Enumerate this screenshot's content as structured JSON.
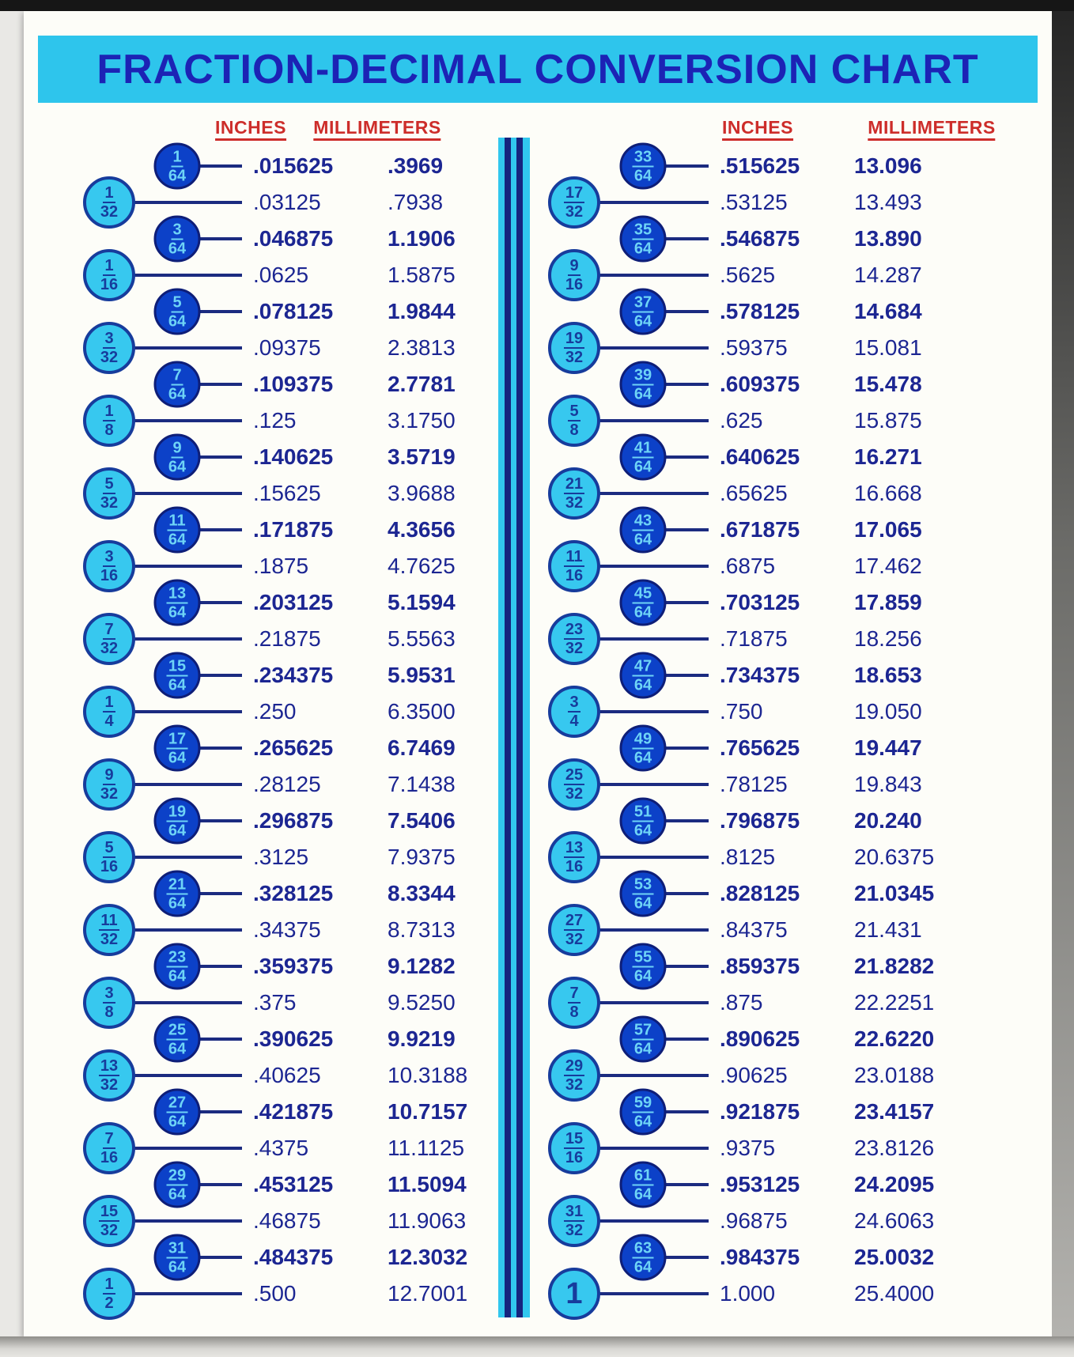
{
  "title": "FRACTION-DECIMAL CONVERSION CHART",
  "headers": [
    "INCHES",
    "MILLIMETERS",
    "INCHES",
    "MILLIMETERS"
  ],
  "colors": {
    "title_bar": "#2ec5ec",
    "title_text": "#1c23b5",
    "header_red": "#cd2d2a",
    "value_navy": "#1c2692",
    "line_navy": "#1b2b80",
    "dark_circle": "#0c41c8",
    "dark_circle_border": "#0e1e78",
    "dark_circle_text": "#6ed4f6",
    "light_circle": "#37c8ef",
    "light_circle_border": "#173c9c",
    "divider_cyan": "#31c7ee",
    "divider_navy": "#16247e"
  },
  "columns": [
    {
      "side": "left",
      "rows": [
        {
          "num": "1",
          "den": "64",
          "inches": ".015625",
          "mm": ".3969",
          "style": "dark"
        },
        {
          "num": "1",
          "den": "32",
          "inches": ".03125",
          "mm": ".7938",
          "style": "light"
        },
        {
          "num": "3",
          "den": "64",
          "inches": ".046875",
          "mm": "1.1906",
          "style": "dark"
        },
        {
          "num": "1",
          "den": "16",
          "inches": ".0625",
          "mm": "1.5875",
          "style": "light"
        },
        {
          "num": "5",
          "den": "64",
          "inches": ".078125",
          "mm": "1.9844",
          "style": "dark"
        },
        {
          "num": "3",
          "den": "32",
          "inches": ".09375",
          "mm": "2.3813",
          "style": "light"
        },
        {
          "num": "7",
          "den": "64",
          "inches": ".109375",
          "mm": "2.7781",
          "style": "dark"
        },
        {
          "num": "1",
          "den": "8",
          "inches": ".125",
          "mm": "3.1750",
          "style": "light"
        },
        {
          "num": "9",
          "den": "64",
          "inches": ".140625",
          "mm": "3.5719",
          "style": "dark"
        },
        {
          "num": "5",
          "den": "32",
          "inches": ".15625",
          "mm": "3.9688",
          "style": "light"
        },
        {
          "num": "11",
          "den": "64",
          "inches": ".171875",
          "mm": "4.3656",
          "style": "dark"
        },
        {
          "num": "3",
          "den": "16",
          "inches": ".1875",
          "mm": "4.7625",
          "style": "light"
        },
        {
          "num": "13",
          "den": "64",
          "inches": ".203125",
          "mm": "5.1594",
          "style": "dark"
        },
        {
          "num": "7",
          "den": "32",
          "inches": ".21875",
          "mm": "5.5563",
          "style": "light"
        },
        {
          "num": "15",
          "den": "64",
          "inches": ".234375",
          "mm": "5.9531",
          "style": "dark"
        },
        {
          "num": "1",
          "den": "4",
          "inches": ".250",
          "mm": "6.3500",
          "style": "light"
        },
        {
          "num": "17",
          "den": "64",
          "inches": ".265625",
          "mm": "6.7469",
          "style": "dark"
        },
        {
          "num": "9",
          "den": "32",
          "inches": ".28125",
          "mm": "7.1438",
          "style": "light"
        },
        {
          "num": "19",
          "den": "64",
          "inches": ".296875",
          "mm": "7.5406",
          "style": "dark"
        },
        {
          "num": "5",
          "den": "16",
          "inches": ".3125",
          "mm": "7.9375",
          "style": "light"
        },
        {
          "num": "21",
          "den": "64",
          "inches": ".328125",
          "mm": "8.3344",
          "style": "dark"
        },
        {
          "num": "11",
          "den": "32",
          "inches": ".34375",
          "mm": "8.7313",
          "style": "light"
        },
        {
          "num": "23",
          "den": "64",
          "inches": ".359375",
          "mm": "9.1282",
          "style": "dark"
        },
        {
          "num": "3",
          "den": "8",
          "inches": ".375",
          "mm": "9.5250",
          "style": "light"
        },
        {
          "num": "25",
          "den": "64",
          "inches": ".390625",
          "mm": "9.9219",
          "style": "dark"
        },
        {
          "num": "13",
          "den": "32",
          "inches": ".40625",
          "mm": "10.3188",
          "style": "light"
        },
        {
          "num": "27",
          "den": "64",
          "inches": ".421875",
          "mm": "10.7157",
          "style": "dark"
        },
        {
          "num": "7",
          "den": "16",
          "inches": ".4375",
          "mm": "11.1125",
          "style": "light"
        },
        {
          "num": "29",
          "den": "64",
          "inches": ".453125",
          "mm": "11.5094",
          "style": "dark"
        },
        {
          "num": "15",
          "den": "32",
          "inches": ".46875",
          "mm": "11.9063",
          "style": "light"
        },
        {
          "num": "31",
          "den": "64",
          "inches": ".484375",
          "mm": "12.3032",
          "style": "dark"
        },
        {
          "num": "1",
          "den": "2",
          "inches": ".500",
          "mm": "12.7001",
          "style": "light"
        }
      ]
    },
    {
      "side": "right",
      "rows": [
        {
          "num": "33",
          "den": "64",
          "inches": ".515625",
          "mm": "13.096",
          "style": "dark"
        },
        {
          "num": "17",
          "den": "32",
          "inches": ".53125",
          "mm": "13.493",
          "style": "light"
        },
        {
          "num": "35",
          "den": "64",
          "inches": ".546875",
          "mm": "13.890",
          "style": "dark"
        },
        {
          "num": "9",
          "den": "16",
          "inches": ".5625",
          "mm": "14.287",
          "style": "light"
        },
        {
          "num": "37",
          "den": "64",
          "inches": ".578125",
          "mm": "14.684",
          "style": "dark"
        },
        {
          "num": "19",
          "den": "32",
          "inches": ".59375",
          "mm": "15.081",
          "style": "light"
        },
        {
          "num": "39",
          "den": "64",
          "inches": ".609375",
          "mm": "15.478",
          "style": "dark"
        },
        {
          "num": "5",
          "den": "8",
          "inches": ".625",
          "mm": "15.875",
          "style": "light"
        },
        {
          "num": "41",
          "den": "64",
          "inches": ".640625",
          "mm": "16.271",
          "style": "dark"
        },
        {
          "num": "21",
          "den": "32",
          "inches": ".65625",
          "mm": "16.668",
          "style": "light"
        },
        {
          "num": "43",
          "den": "64",
          "inches": ".671875",
          "mm": "17.065",
          "style": "dark"
        },
        {
          "num": "11",
          "den": "16",
          "inches": ".6875",
          "mm": "17.462",
          "style": "light"
        },
        {
          "num": "45",
          "den": "64",
          "inches": ".703125",
          "mm": "17.859",
          "style": "dark"
        },
        {
          "num": "23",
          "den": "32",
          "inches": ".71875",
          "mm": "18.256",
          "style": "light"
        },
        {
          "num": "47",
          "den": "64",
          "inches": ".734375",
          "mm": "18.653",
          "style": "dark"
        },
        {
          "num": "3",
          "den": "4",
          "inches": ".750",
          "mm": "19.050",
          "style": "light"
        },
        {
          "num": "49",
          "den": "64",
          "inches": ".765625",
          "mm": "19.447",
          "style": "dark"
        },
        {
          "num": "25",
          "den": "32",
          "inches": ".78125",
          "mm": "19.843",
          "style": "light"
        },
        {
          "num": "51",
          "den": "64",
          "inches": ".796875",
          "mm": "20.240",
          "style": "dark"
        },
        {
          "num": "13",
          "den": "16",
          "inches": ".8125",
          "mm": "20.6375",
          "style": "light"
        },
        {
          "num": "53",
          "den": "64",
          "inches": ".828125",
          "mm": "21.0345",
          "style": "dark"
        },
        {
          "num": "27",
          "den": "32",
          "inches": ".84375",
          "mm": "21.431",
          "style": "light"
        },
        {
          "num": "55",
          "den": "64",
          "inches": ".859375",
          "mm": "21.8282",
          "style": "dark"
        },
        {
          "num": "7",
          "den": "8",
          "inches": ".875",
          "mm": "22.2251",
          "style": "light"
        },
        {
          "num": "57",
          "den": "64",
          "inches": ".890625",
          "mm": "22.6220",
          "style": "dark"
        },
        {
          "num": "29",
          "den": "32",
          "inches": ".90625",
          "mm": "23.0188",
          "style": "light"
        },
        {
          "num": "59",
          "den": "64",
          "inches": ".921875",
          "mm": "23.4157",
          "style": "dark"
        },
        {
          "num": "15",
          "den": "16",
          "inches": ".9375",
          "mm": "23.8126",
          "style": "light"
        },
        {
          "num": "61",
          "den": "64",
          "inches": ".953125",
          "mm": "24.2095",
          "style": "dark"
        },
        {
          "num": "31",
          "den": "32",
          "inches": ".96875",
          "mm": "24.6063",
          "style": "light"
        },
        {
          "num": "63",
          "den": "64",
          "inches": ".984375",
          "mm": "25.0032",
          "style": "dark"
        },
        {
          "num": "1",
          "den": "",
          "inches": "1.000",
          "mm": "25.4000",
          "style": "light"
        }
      ]
    }
  ]
}
